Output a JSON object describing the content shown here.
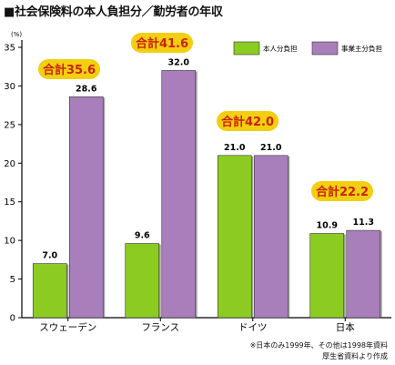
{
  "page_title": "■社会保険料の本人負担分／勤労者の年収",
  "notes": [
    "※日本のみ1999年、その他は1998年資料",
    "厚生省資料より作成"
  ],
  "colors": {
    "person": "#8ccc22",
    "employer": "#a87fba",
    "total_label": "#f2cf10",
    "total_text": "#cc2200"
  },
  "chart_data": {
    "type": "bar",
    "categories": [
      "スウェーデン",
      "フランス",
      "ドイツ",
      "日本"
    ],
    "series": [
      {
        "name": "本人分負担",
        "values": [
          7.0,
          9.6,
          21.0,
          10.9
        ]
      },
      {
        "name": "事業主分負担",
        "values": [
          28.6,
          32.0,
          21.0,
          11.3
        ]
      }
    ],
    "value_labels": [
      [
        "7.0",
        "28.6"
      ],
      [
        "9.6",
        "32.0"
      ],
      [
        "21.0",
        "21.0"
      ],
      [
        "10.9",
        "11.3"
      ]
    ],
    "totals": [
      "合計35.6",
      "合計41.6",
      "合計42.0",
      "合計22.2"
    ],
    "y_unit_label": "(%)",
    "y_ticks": [
      "0",
      "5",
      "10",
      "15",
      "20",
      "25",
      "30",
      "35"
    ],
    "ylim": [
      0,
      35
    ],
    "grid": false,
    "legend_position": "top-right"
  }
}
